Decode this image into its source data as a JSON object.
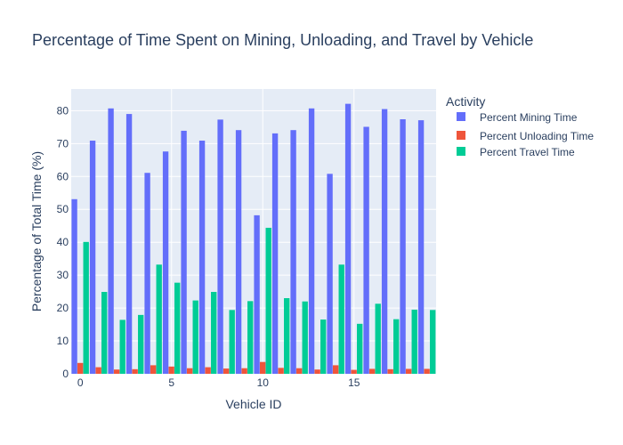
{
  "chart_data": {
    "type": "bar",
    "title": "Percentage of Time Spent on Mining, Unloading, and Travel by Vehicle",
    "xlabel": "Vehicle ID",
    "ylabel": "Percentage of Total Time (%)",
    "x": [
      0,
      1,
      2,
      3,
      4,
      5,
      6,
      7,
      8,
      9,
      10,
      11,
      12,
      13,
      14,
      15,
      16,
      17,
      18,
      19
    ],
    "x_ticks": [
      0,
      5,
      10,
      15
    ],
    "y_ticks": [
      0,
      10,
      20,
      30,
      40,
      50,
      60,
      70,
      80
    ],
    "ylim": [
      0,
      86.6
    ],
    "xlim": [
      -0.5,
      19.5
    ],
    "grid": true,
    "legend": {
      "title": "Activity",
      "placement": "right"
    },
    "series": [
      {
        "name": "Percent Mining Time",
        "color": "#636efa",
        "values": [
          53.1,
          70.9,
          80.7,
          79.0,
          61.1,
          67.6,
          73.9,
          70.9,
          77.3,
          74.1,
          48.2,
          73.1,
          74.1,
          80.7,
          60.8,
          82.1,
          75.1,
          80.5,
          77.4,
          77.1
        ]
      },
      {
        "name": "Percent Unloading Time",
        "color": "#ef553b",
        "values": [
          3.3,
          2.0,
          1.3,
          1.4,
          2.6,
          2.2,
          1.7,
          2.0,
          1.6,
          1.7,
          3.6,
          1.8,
          1.7,
          1.3,
          2.6,
          1.2,
          1.5,
          1.4,
          1.5,
          1.5
        ]
      },
      {
        "name": "Percent Travel Time",
        "color": "#00cc96",
        "values": [
          40.1,
          24.9,
          16.4,
          17.9,
          33.2,
          27.7,
          22.3,
          24.9,
          19.4,
          22.1,
          44.4,
          23.0,
          22.0,
          16.5,
          33.2,
          15.2,
          21.3,
          16.6,
          19.5,
          19.4
        ]
      }
    ]
  }
}
